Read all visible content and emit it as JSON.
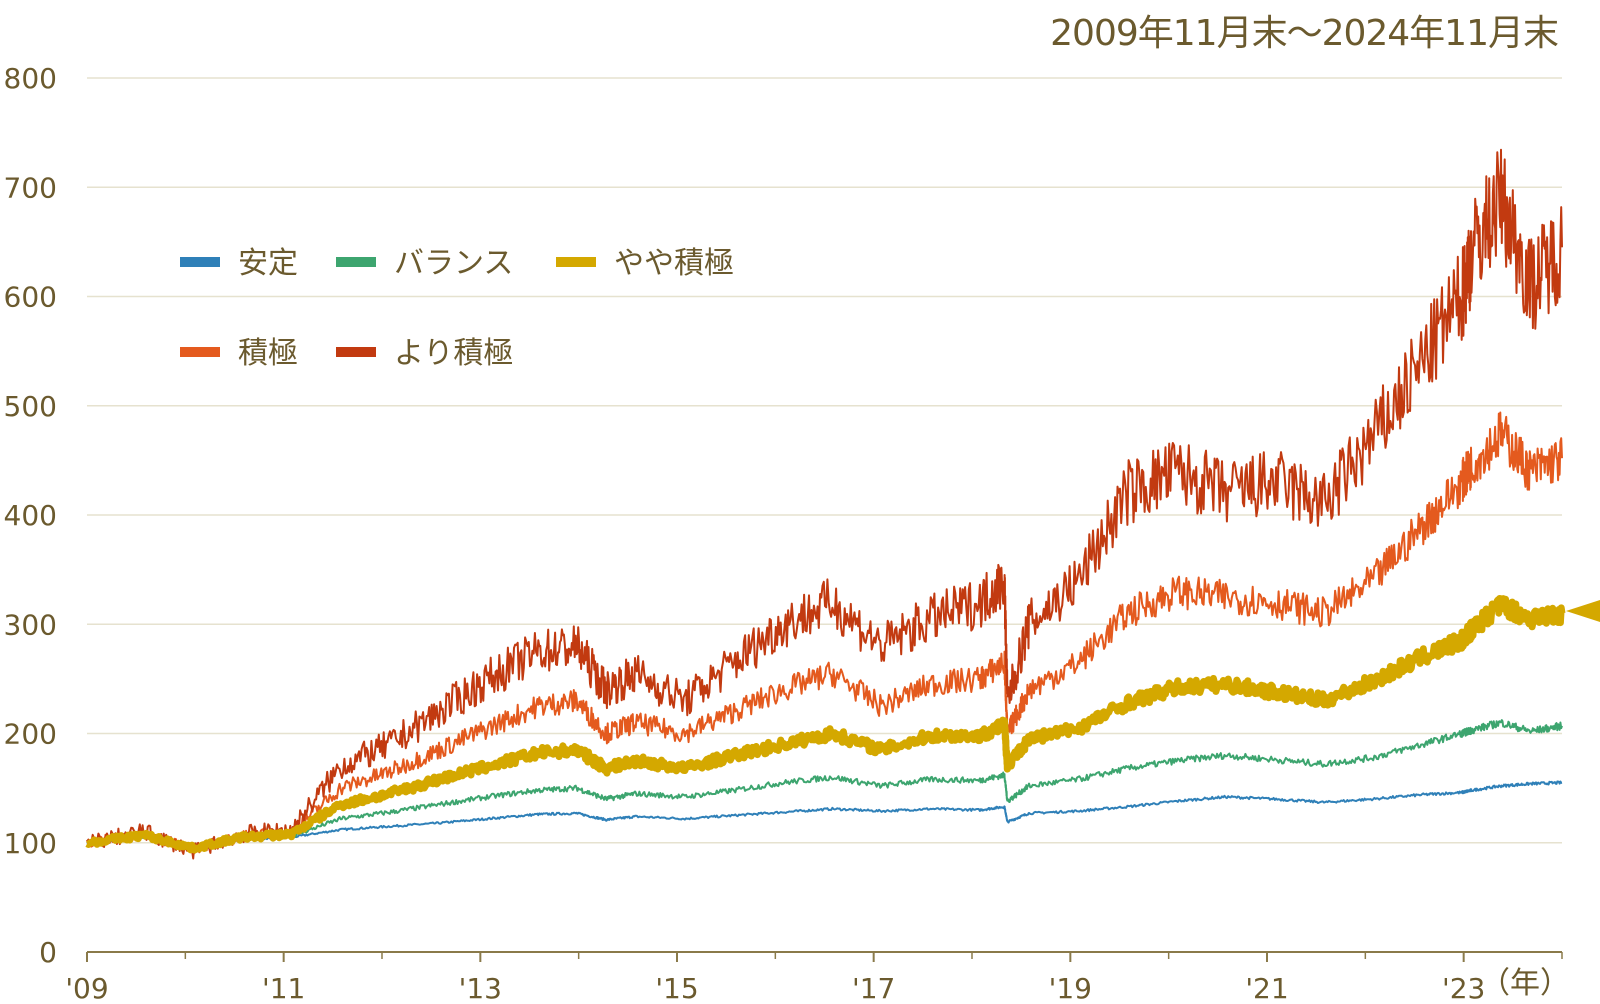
{
  "chart_data": {
    "type": "line",
    "period_label": "2009年11月末〜2024年11月末",
    "x_unit_label": "（年）",
    "x_ticks": [
      "'09",
      "'11",
      "'13",
      "'15",
      "'17",
      "'19",
      "'21",
      "'23"
    ],
    "y_ticks": [
      0,
      100,
      200,
      300,
      400,
      500,
      600,
      700,
      800
    ],
    "ylim": [
      0,
      800
    ],
    "xlim": [
      2009.92,
      2024.92
    ],
    "grid": "horizontal",
    "legend_placement": "top-left",
    "highlight_series": "やや積極",
    "series": [
      {
        "name": "安定",
        "color": "#2f80b8",
        "x": [
          2009.92,
          2010.5,
          2011.0,
          2011.5,
          2012.0,
          2012.5,
          2013.0,
          2013.5,
          2014.0,
          2014.5,
          2014.9,
          2015.2,
          2015.5,
          2016.0,
          2016.5,
          2017.0,
          2017.5,
          2018.0,
          2018.5,
          2019.0,
          2019.25,
          2019.28,
          2019.5,
          2020.0,
          2020.5,
          2021.0,
          2021.5,
          2022.0,
          2022.5,
          2023.0,
          2023.5,
          2023.9,
          2024.0,
          2024.3,
          2024.6,
          2024.92
        ],
        "values": [
          100,
          105,
          97,
          103,
          105,
          112,
          115,
          118,
          122,
          126,
          127,
          121,
          124,
          122,
          125,
          128,
          131,
          129,
          131,
          130,
          133,
          119,
          127,
          129,
          133,
          138,
          142,
          140,
          137,
          140,
          144,
          146,
          148,
          152,
          154,
          155
        ]
      },
      {
        "name": "バランス",
        "color": "#3da56f",
        "x": [
          2009.92,
          2010.5,
          2011.0,
          2011.5,
          2012.0,
          2012.5,
          2013.0,
          2013.5,
          2014.0,
          2014.5,
          2014.9,
          2015.2,
          2015.5,
          2016.0,
          2016.5,
          2017.0,
          2017.5,
          2018.0,
          2018.5,
          2019.0,
          2019.25,
          2019.28,
          2019.5,
          2020.0,
          2020.5,
          2021.0,
          2021.5,
          2022.0,
          2022.5,
          2023.0,
          2023.5,
          2023.9,
          2024.0,
          2024.3,
          2024.6,
          2024.92
        ],
        "values": [
          100,
          106,
          96,
          104,
          106,
          122,
          128,
          135,
          142,
          148,
          150,
          140,
          145,
          142,
          148,
          155,
          160,
          152,
          158,
          157,
          162,
          138,
          152,
          158,
          168,
          175,
          180,
          176,
          172,
          178,
          190,
          200,
          203,
          210,
          202,
          207
        ]
      },
      {
        "name": "やや積極",
        "color": "#d4a800",
        "x": [
          2009.92,
          2010.5,
          2011.0,
          2011.5,
          2012.0,
          2012.5,
          2013.0,
          2013.5,
          2014.0,
          2014.5,
          2014.9,
          2015.2,
          2015.5,
          2016.0,
          2016.5,
          2017.0,
          2017.5,
          2018.0,
          2018.5,
          2019.0,
          2019.25,
          2019.28,
          2019.5,
          2020.0,
          2020.5,
          2021.0,
          2021.5,
          2022.0,
          2022.5,
          2023.0,
          2023.5,
          2023.9,
          2024.0,
          2024.3,
          2024.6,
          2024.92
        ],
        "values": [
          100,
          107,
          95,
          105,
          108,
          135,
          145,
          158,
          170,
          182,
          185,
          168,
          175,
          168,
          180,
          190,
          200,
          185,
          198,
          198,
          208,
          170,
          195,
          205,
          228,
          242,
          245,
          238,
          230,
          248,
          270,
          285,
          295,
          318,
          305,
          310
        ]
      },
      {
        "name": "積極",
        "color": "#e45a1e",
        "x": [
          2009.92,
          2010.5,
          2011.0,
          2011.5,
          2012.0,
          2012.5,
          2013.0,
          2013.5,
          2014.0,
          2014.5,
          2014.9,
          2015.2,
          2015.5,
          2016.0,
          2016.5,
          2017.0,
          2017.5,
          2018.0,
          2018.5,
          2019.0,
          2019.25,
          2019.28,
          2019.5,
          2020.0,
          2020.5,
          2021.0,
          2021.5,
          2022.0,
          2022.5,
          2023.0,
          2023.5,
          2023.9,
          2024.0,
          2024.3,
          2024.6,
          2024.92
        ],
        "values": [
          100,
          108,
          94,
          106,
          110,
          150,
          165,
          185,
          205,
          225,
          230,
          200,
          210,
          200,
          220,
          240,
          255,
          225,
          245,
          250,
          265,
          200,
          240,
          265,
          310,
          330,
          325,
          320,
          310,
          340,
          390,
          430,
          445,
          475,
          440,
          452
        ]
      },
      {
        "name": "より積極",
        "color": "#c23a10",
        "x": [
          2009.92,
          2010.5,
          2011.0,
          2011.5,
          2012.0,
          2012.5,
          2013.0,
          2013.5,
          2014.0,
          2014.5,
          2014.9,
          2015.2,
          2015.5,
          2016.0,
          2016.5,
          2017.0,
          2017.5,
          2018.0,
          2018.5,
          2019.0,
          2019.25,
          2019.28,
          2019.5,
          2020.0,
          2020.5,
          2021.0,
          2021.5,
          2022.0,
          2022.5,
          2023.0,
          2023.5,
          2023.9,
          2024.0,
          2024.3,
          2024.6,
          2024.92
        ],
        "values": [
          100,
          110,
          92,
          108,
          112,
          170,
          190,
          220,
          250,
          275,
          280,
          240,
          255,
          230,
          265,
          300,
          320,
          280,
          305,
          320,
          340,
          230,
          300,
          340,
          420,
          440,
          420,
          430,
          410,
          470,
          540,
          600,
          640,
          690,
          610,
          645
        ]
      }
    ]
  }
}
